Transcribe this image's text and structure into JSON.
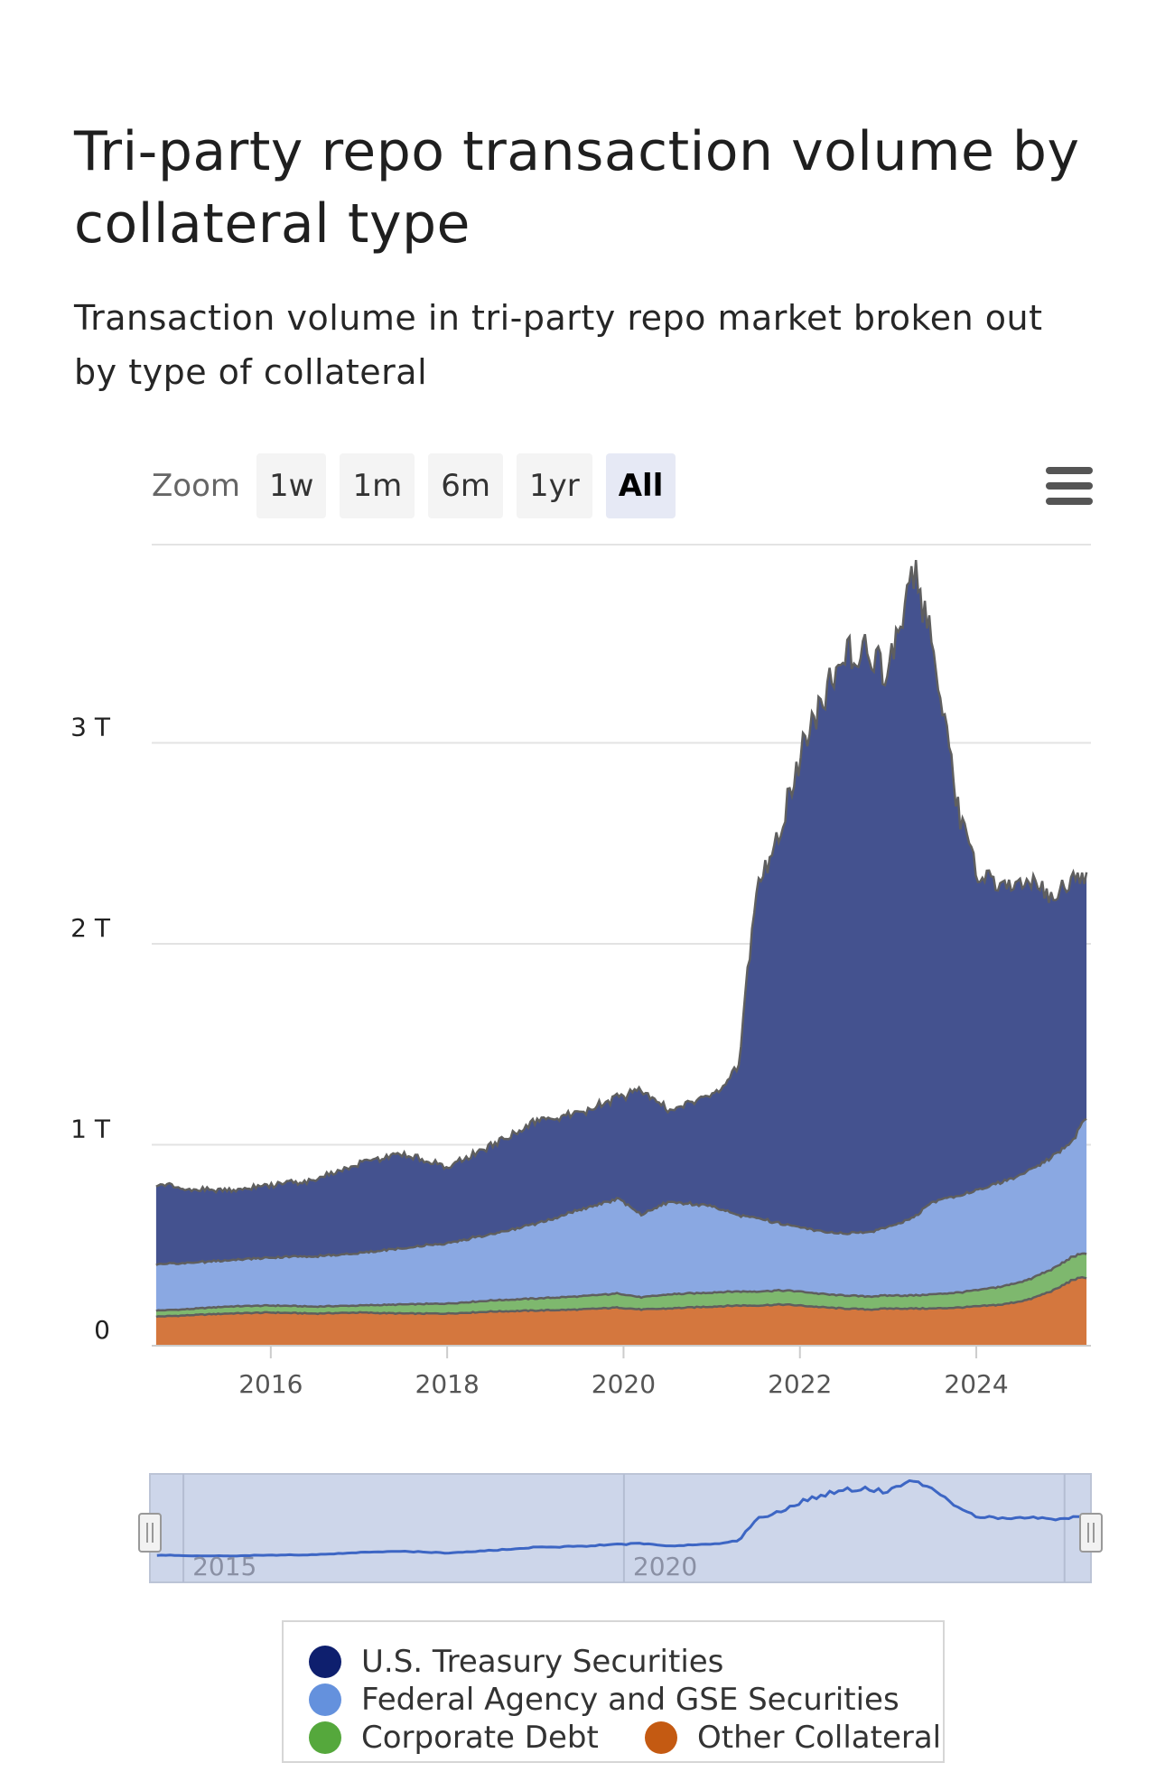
{
  "header": {
    "title": "Tri-party repo transaction volume by collateral type",
    "subtitle": "Transaction volume in tri-party repo market broken out by type of collateral"
  },
  "zoom": {
    "label": "Zoom",
    "buttons": [
      "1w",
      "1m",
      "6m",
      "1yr",
      "All"
    ],
    "active": "All"
  },
  "navigator": {
    "labels": [
      "2015",
      "2020"
    ]
  },
  "colors": {
    "treasury": "#44528f",
    "agency": "#8aa8e2",
    "corporate": "#7eb86e",
    "other": "#d4773e",
    "outline": "#5f5f5f",
    "legend_treasury": "#0e1f6e",
    "legend_agency": "#6491dd",
    "legend_corporate": "#55a83c",
    "legend_other": "#c45a12"
  },
  "legend": {
    "items": [
      {
        "label": "U.S. Treasury Securities",
        "color": "#0e1f6e"
      },
      {
        "label": "Federal Agency and GSE Securities",
        "color": "#6491dd"
      },
      {
        "label": "Corporate Debt",
        "color": "#55a83c"
      },
      {
        "label": "Other Collateral",
        "color": "#c45a12"
      }
    ]
  },
  "chart_data": {
    "type": "area",
    "stacked": true,
    "title": "Tri-party repo transaction volume by collateral type",
    "subtitle": "Transaction volume in tri-party repo market broken out by type of collateral",
    "xlabel": "",
    "ylabel": "",
    "x_ticks": [
      "2016",
      "2018",
      "2020",
      "2022",
      "2024"
    ],
    "y_ticks": [
      "0",
      "1 T",
      "2 T",
      "3 T"
    ],
    "xlim": [
      2014.65,
      2025.3
    ],
    "ylim": [
      0,
      4000
    ],
    "y_unit": "billions USD",
    "grid": true,
    "legend_position": "bottom",
    "x": [
      2014.7,
      2015.0,
      2015.5,
      2016.0,
      2016.5,
      2017.0,
      2017.5,
      2018.0,
      2018.5,
      2019.0,
      2019.5,
      2019.95,
      2020.2,
      2020.5,
      2021.0,
      2021.3,
      2021.5,
      2021.8,
      2022.0,
      2022.3,
      2022.5,
      2022.8,
      2023.0,
      2023.3,
      2023.5,
      2023.8,
      2024.0,
      2024.3,
      2024.6,
      2024.9,
      2025.1,
      2025.25
    ],
    "series": [
      {
        "name": "Other Collateral",
        "values": [
          145,
          150,
          160,
          165,
          160,
          165,
          160,
          160,
          170,
          175,
          180,
          190,
          180,
          185,
          195,
          200,
          200,
          205,
          200,
          190,
          185,
          180,
          185,
          185,
          185,
          190,
          195,
          205,
          230,
          280,
          330,
          340
        ]
      },
      {
        "name": "Corporate Debt",
        "values": [
          30,
          30,
          35,
          35,
          35,
          35,
          45,
          50,
          55,
          60,
          65,
          70,
          60,
          70,
          70,
          70,
          70,
          70,
          70,
          65,
          65,
          65,
          65,
          65,
          70,
          75,
          80,
          90,
          100,
          110,
          115,
          120
        ]
      },
      {
        "name": "Federal Agency and GSE Securities",
        "values": [
          230,
          230,
          230,
          240,
          250,
          260,
          280,
          300,
          330,
          370,
          430,
          470,
          410,
          460,
          430,
          380,
          370,
          330,
          320,
          310,
          310,
          320,
          340,
          390,
          460,
          480,
          500,
          520,
          540,
          560,
          580,
          680
        ]
      },
      {
        "name": "U.S. Treasury Securities",
        "values": [
          400,
          370,
          350,
          360,
          380,
          450,
          470,
          380,
          440,
          510,
          480,
          510,
          620,
          460,
          550,
          740,
          1600,
          2000,
          2350,
          2700,
          2900,
          2900,
          2750,
          3200,
          2800,
          1900,
          1580,
          1470,
          1430,
          1290,
          1300,
          1200
        ]
      }
    ]
  }
}
